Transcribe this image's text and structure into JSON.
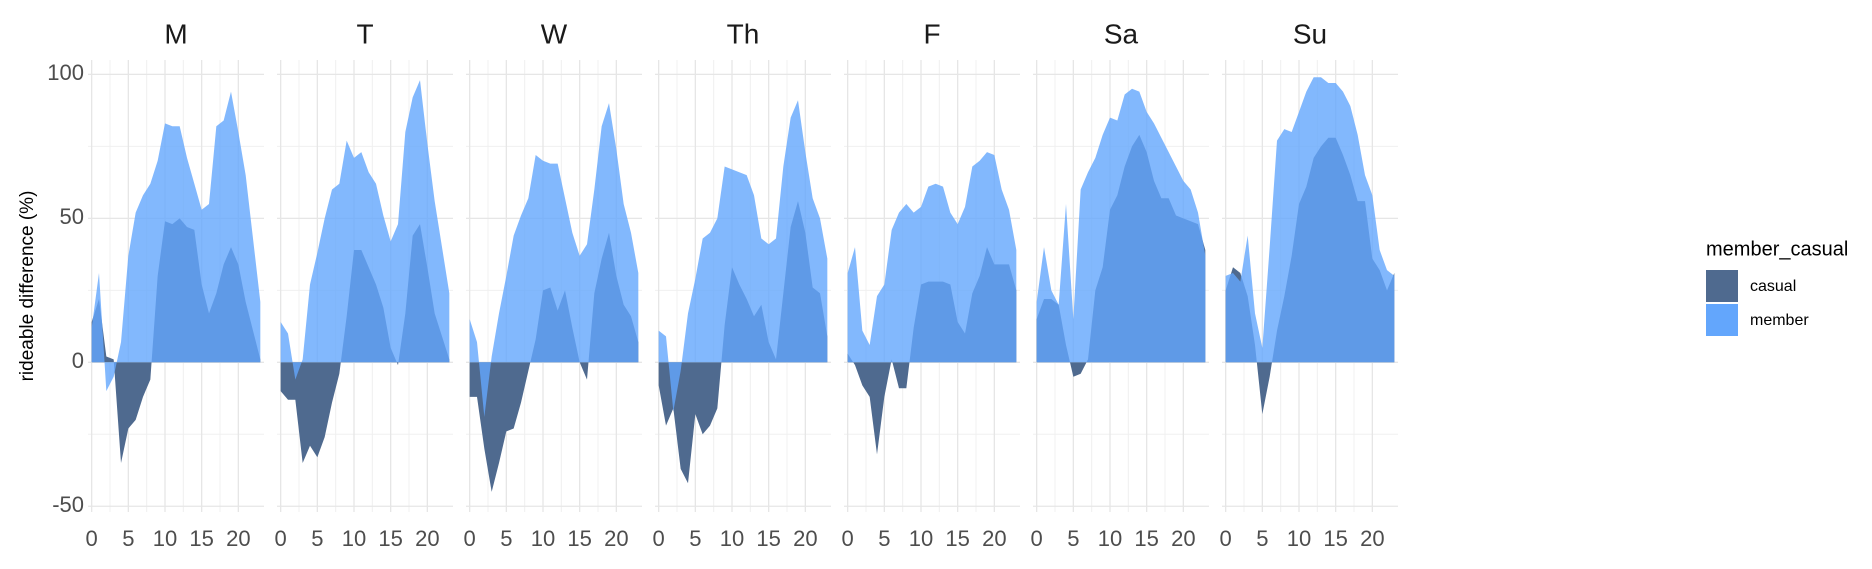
{
  "chart_data": {
    "type": "area",
    "ylabel": "rideable difference (%)",
    "xlabel": "",
    "facets": [
      "M",
      "T",
      "W",
      "Th",
      "F",
      "Sa",
      "Su"
    ],
    "x_ticks": [
      0,
      5,
      10,
      15,
      20
    ],
    "y_ticks": [
      100,
      50,
      0,
      -50
    ],
    "xlim": [
      -0.5,
      23.5
    ],
    "ylim": [
      -52,
      105
    ],
    "grid": true,
    "legend": {
      "title": "member_casual",
      "position": "right",
      "entries": [
        {
          "label": "casual",
          "color": "#4f6a8f"
        },
        {
          "label": "member",
          "color": "#63a6fc"
        }
      ]
    },
    "overlap_color": "#2f80e3",
    "x": [
      0,
      1,
      2,
      3,
      4,
      5,
      6,
      7,
      8,
      9,
      10,
      11,
      12,
      13,
      14,
      15,
      16,
      17,
      18,
      19,
      20,
      21,
      22,
      23
    ],
    "series": [
      {
        "name": "casual",
        "facet": "M",
        "values": [
          14,
          22,
          2,
          1,
          -35,
          -23,
          -20,
          -12,
          -6,
          30,
          49,
          48,
          50,
          47,
          46,
          27,
          17,
          24,
          34,
          40,
          34,
          21,
          11,
          1
        ]
      },
      {
        "name": "member",
        "facet": "M",
        "values": [
          12,
          31,
          -10,
          -5,
          7,
          37,
          52,
          58,
          62,
          70,
          83,
          82,
          82,
          71,
          62,
          53,
          55,
          82,
          84,
          94,
          80,
          65,
          43,
          21
        ]
      },
      {
        "name": "casual",
        "facet": "T",
        "values": [
          -10,
          -13,
          -13,
          -35,
          -29,
          -33,
          -26,
          -14,
          -4,
          16,
          39,
          39,
          33,
          27,
          19,
          5,
          -1,
          17,
          44,
          48,
          33,
          17,
          9,
          1
        ]
      },
      {
        "name": "member",
        "facet": "T",
        "values": [
          14,
          10,
          -6,
          1,
          27,
          38,
          50,
          60,
          62,
          77,
          71,
          73,
          66,
          62,
          51,
          42,
          48,
          80,
          92,
          98,
          76,
          56,
          40,
          24
        ]
      },
      {
        "name": "casual",
        "facet": "W",
        "values": [
          -12,
          -12,
          -30,
          -45,
          -35,
          -24,
          -23,
          -14,
          -3,
          8,
          25,
          26,
          18,
          25,
          12,
          0,
          -6,
          24,
          36,
          45,
          30,
          20,
          16,
          7
        ]
      },
      {
        "name": "member",
        "facet": "W",
        "values": [
          15,
          7,
          -19,
          2,
          17,
          30,
          44,
          51,
          57,
          72,
          70,
          69,
          69,
          57,
          45,
          37,
          41,
          60,
          82,
          90,
          74,
          55,
          45,
          31
        ]
      },
      {
        "name": "casual",
        "facet": "Th",
        "values": [
          -8,
          -22,
          -16,
          -37,
          -42,
          -18,
          -25,
          -22,
          -16,
          13,
          33,
          27,
          22,
          16,
          20,
          7,
          1,
          24,
          47,
          56,
          45,
          26,
          24,
          9
        ]
      },
      {
        "name": "member",
        "facet": "Th",
        "values": [
          11,
          9,
          -17,
          -3,
          17,
          29,
          43,
          45,
          50,
          68,
          67,
          66,
          65,
          58,
          43,
          41,
          43,
          68,
          85,
          91,
          73,
          57,
          50,
          36
        ]
      },
      {
        "name": "casual",
        "facet": "F",
        "values": [
          3,
          -1,
          -8,
          -12,
          -32,
          -12,
          1,
          -9,
          -9,
          12,
          27,
          28,
          28,
          28,
          27,
          14,
          10,
          24,
          30,
          40,
          34,
          34,
          34,
          25
        ]
      },
      {
        "name": "member",
        "facet": "F",
        "values": [
          31,
          40,
          11,
          6,
          23,
          27,
          46,
          52,
          55,
          52,
          54,
          61,
          62,
          61,
          52,
          48,
          54,
          68,
          70,
          73,
          72,
          60,
          53,
          39
        ]
      },
      {
        "name": "casual",
        "facet": "Sa",
        "values": [
          15,
          22,
          22,
          20,
          6,
          -5,
          -4,
          1,
          25,
          33,
          53,
          58,
          68,
          75,
          79,
          73,
          63,
          57,
          57,
          51,
          50,
          49,
          48,
          39
        ]
      },
      {
        "name": "member",
        "facet": "Sa",
        "values": [
          21,
          40,
          25,
          20,
          55,
          15,
          60,
          66,
          71,
          79,
          85,
          84,
          93,
          95,
          94,
          87,
          83,
          78,
          73,
          68,
          63,
          60,
          52,
          37
        ]
      },
      {
        "name": "casual",
        "facet": "Su",
        "values": [
          25,
          33,
          31,
          23,
          6,
          -18,
          -5,
          11,
          23,
          37,
          55,
          61,
          71,
          75,
          78,
          78,
          72,
          65,
          56,
          56,
          36,
          32,
          25,
          31
        ]
      },
      {
        "name": "member",
        "facet": "Su",
        "values": [
          30,
          31,
          28,
          44,
          17,
          5,
          40,
          77,
          81,
          80,
          87,
          94,
          99,
          99,
          97,
          97,
          94,
          89,
          79,
          65,
          58,
          39,
          32,
          30
        ]
      }
    ]
  }
}
